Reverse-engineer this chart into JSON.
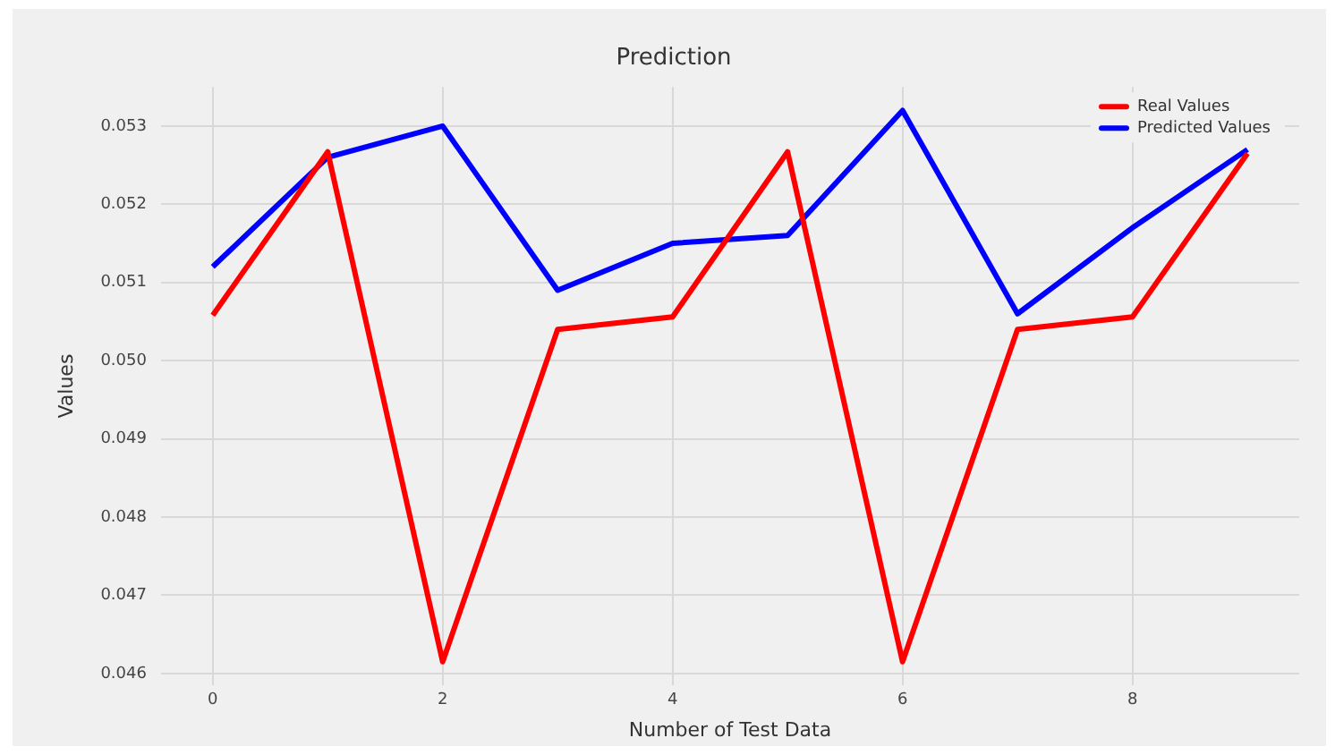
{
  "chart_data": {
    "type": "line",
    "title": "Prediction",
    "xlabel": "Number of Test Data",
    "ylabel": "Values",
    "x": [
      0,
      1,
      2,
      3,
      4,
      5,
      6,
      7,
      8,
      9
    ],
    "series": [
      {
        "name": "Real Values",
        "color": "#ff0000",
        "values": [
          0.05058,
          0.05267,
          0.04615,
          0.0504,
          0.05056,
          0.05267,
          0.04615,
          0.0504,
          0.05056,
          0.05265
        ]
      },
      {
        "name": "Predicted Values",
        "color": "#0000ff",
        "values": [
          0.0512,
          0.0526,
          0.053,
          0.0509,
          0.0515,
          0.0516,
          0.0532,
          0.0506,
          0.0517,
          0.0527
        ]
      }
    ],
    "xlim": [
      -0.45,
      9.45
    ],
    "xticks": [
      0,
      2,
      4,
      6,
      8
    ],
    "ylim": [
      0.04585,
      0.0535
    ],
    "yticks": [
      0.046,
      0.047,
      0.048,
      0.049,
      {
        "value": 0.05,
        "label": "0.050"
      },
      0.051,
      0.052,
      0.053
    ],
    "grid": true,
    "legend": "top right",
    "marker": "none",
    "line_style": "solid"
  }
}
